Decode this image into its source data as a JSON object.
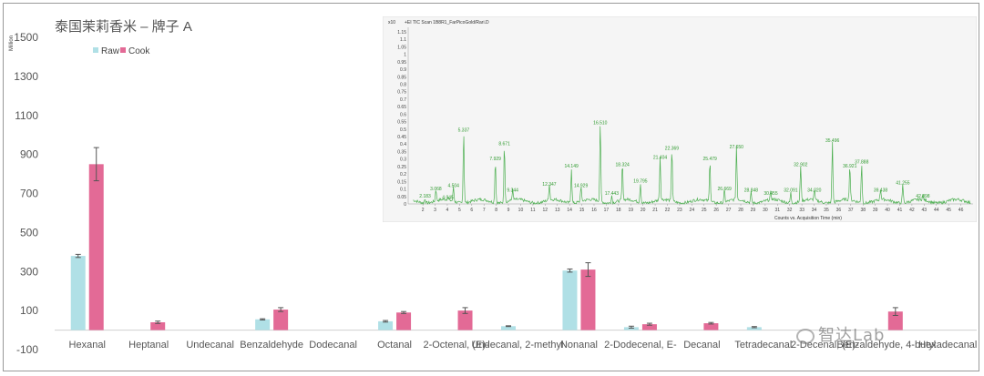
{
  "chart_data": {
    "type": "bar",
    "title": "泰国茉莉香米 – 牌子 A",
    "ylabel": "Million",
    "ylim": [
      -100,
      1500
    ],
    "yticks": [
      -100,
      100,
      300,
      500,
      700,
      900,
      1100,
      1300,
      1500
    ],
    "legend_position": "top-left",
    "categories": [
      "Hexanal",
      "Heptanal",
      "Undecanal",
      "Benzaldehyde",
      "Dodecanal",
      "Octanal",
      "2-Octenal, (E)-",
      "Undecanal, 2-methyl",
      "Nonanal",
      "2-Dodecenal, E-",
      "Decanal",
      "Tetradecanal",
      "2-Decenal, (E)-",
      "Benzaldehyde, 4-butyl",
      "Hexadecanal"
    ],
    "series": [
      {
        "name": "Raw",
        "color": "#b0e0e6",
        "values": [
          380,
          null,
          null,
          55,
          null,
          45,
          null,
          20,
          305,
          15,
          null,
          15,
          null,
          null,
          null
        ],
        "errors": [
          8,
          null,
          null,
          3,
          null,
          4,
          null,
          2,
          8,
          5,
          null,
          3,
          null,
          null,
          null
        ]
      },
      {
        "name": "Cook",
        "color": "#e36a96",
        "values": [
          850,
          40,
          null,
          105,
          null,
          90,
          100,
          null,
          310,
          30,
          35,
          null,
          null,
          95,
          null
        ],
        "errors": [
          85,
          6,
          null,
          10,
          null,
          5,
          15,
          null,
          35,
          5,
          4,
          null,
          null,
          20,
          null
        ]
      }
    ]
  },
  "inset": {
    "header_y": "x10",
    "header_text": "+EI TIC Scan 1B8R1_FarPicoGold/Rari.D",
    "xlabel": "Counts vs. Acquisition Time (min)",
    "color": "#4caf50",
    "yticks": [
      "1.15",
      "1.1",
      "1.05",
      "1",
      "0.95",
      "0.9",
      "0.85",
      "0.8",
      "0.75",
      "0.7",
      "0.65",
      "0.6",
      "0.55",
      "0.5",
      "0.45",
      "0.4",
      "0.35",
      "0.3",
      "0.25",
      "0.2",
      "0.15",
      "0.1",
      "0.05",
      "0"
    ],
    "xticks": [
      "2",
      "3",
      "4",
      "5",
      "6",
      "7",
      "8",
      "9",
      "10",
      "11",
      "12",
      "13",
      "14",
      "15",
      "16",
      "17",
      "18",
      "19",
      "20",
      "21",
      "22",
      "23",
      "24",
      "25",
      "26",
      "27",
      "28",
      "29",
      "30",
      "31",
      "32",
      "33",
      "34",
      "35",
      "36",
      "37",
      "38",
      "39",
      "40",
      "41",
      "42",
      "43",
      "44",
      "45",
      "46"
    ],
    "peaks": [
      {
        "t": 2.183,
        "h": 0.03,
        "label": "2.183"
      },
      {
        "t": 3.068,
        "h": 0.08,
        "label": "3.068"
      },
      {
        "t": 4.045,
        "h": 0.02,
        "label": "4.045"
      },
      {
        "t": 4.504,
        "h": 0.1,
        "label": "4.504"
      },
      {
        "t": 5.337,
        "h": 0.47,
        "label": "5.337"
      },
      {
        "t": 7.929,
        "h": 0.28,
        "label": "7.929"
      },
      {
        "t": 8.671,
        "h": 0.38,
        "label": "8.671"
      },
      {
        "t": 9.344,
        "h": 0.07,
        "label": "9.344"
      },
      {
        "t": 12.347,
        "h": 0.11,
        "label": "12.347"
      },
      {
        "t": 14.149,
        "h": 0.23,
        "label": "14.149"
      },
      {
        "t": 14.929,
        "h": 0.1,
        "label": "14.929"
      },
      {
        "t": 16.51,
        "h": 0.52,
        "label": "16.510"
      },
      {
        "t": 17.443,
        "h": 0.05,
        "label": "17.443"
      },
      {
        "t": 18.324,
        "h": 0.24,
        "label": "18.324"
      },
      {
        "t": 19.795,
        "h": 0.13,
        "label": "19.795"
      },
      {
        "t": 21.404,
        "h": 0.29,
        "label": "21.404"
      },
      {
        "t": 22.369,
        "h": 0.35,
        "label": "22.369"
      },
      {
        "t": 25.479,
        "h": 0.28,
        "label": "25.479"
      },
      {
        "t": 26.669,
        "h": 0.08,
        "label": "26.669"
      },
      {
        "t": 27.65,
        "h": 0.36,
        "label": "27.650"
      },
      {
        "t": 28.848,
        "h": 0.07,
        "label": "28.848"
      },
      {
        "t": 30.455,
        "h": 0.05,
        "label": "30.455"
      },
      {
        "t": 32.091,
        "h": 0.07,
        "label": "32.091"
      },
      {
        "t": 32.902,
        "h": 0.24,
        "label": "32.902"
      },
      {
        "t": 34.02,
        "h": 0.07,
        "label": "34.020"
      },
      {
        "t": 35.496,
        "h": 0.4,
        "label": "35.496"
      },
      {
        "t": 36.921,
        "h": 0.23,
        "label": "36.921"
      },
      {
        "t": 37.888,
        "h": 0.26,
        "label": "37.888"
      },
      {
        "t": 39.438,
        "h": 0.07,
        "label": "39.438"
      },
      {
        "t": 41.255,
        "h": 0.12,
        "label": "41.255"
      },
      {
        "t": 42.898,
        "h": 0.03,
        "label": "42.898"
      }
    ]
  },
  "watermark": "智达Lab",
  "watermark_icon": "wechat-icon"
}
